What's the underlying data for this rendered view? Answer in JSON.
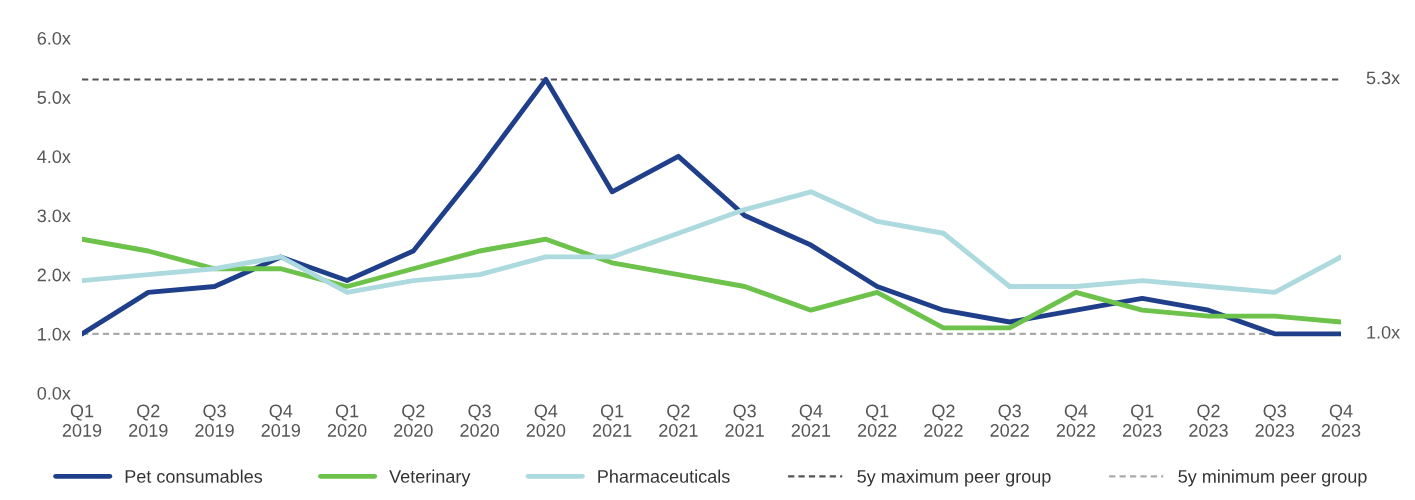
{
  "chart_data": {
    "type": "line",
    "categories": [
      "Q1\n2019",
      "Q2\n2019",
      "Q3\n2019",
      "Q4\n2019",
      "Q1\n2020",
      "Q2\n2020",
      "Q3\n2020",
      "Q4\n2020",
      "Q1\n2021",
      "Q2\n2021",
      "Q3\n2021",
      "Q4\n2021",
      "Q1\n2022",
      "Q2\n2022",
      "Q3\n2022",
      "Q4\n2022",
      "Q1\n2023",
      "Q2\n2023",
      "Q3\n2023",
      "Q4\n2023"
    ],
    "series": [
      {
        "name": "Pet consumables",
        "color": "#1f3f8a",
        "values": [
          1.0,
          1.7,
          1.8,
          2.3,
          1.9,
          2.4,
          3.8,
          5.3,
          3.4,
          4.0,
          3.0,
          2.5,
          1.8,
          1.4,
          1.2,
          1.4,
          1.6,
          1.4,
          1.0,
          1.0
        ]
      },
      {
        "name": "Veterinary",
        "color": "#6cc24a",
        "values": [
          2.6,
          2.4,
          2.1,
          2.1,
          1.8,
          2.1,
          2.4,
          2.6,
          2.2,
          2.0,
          1.8,
          1.4,
          1.7,
          1.1,
          1.1,
          1.7,
          1.4,
          1.3,
          1.3,
          1.2
        ]
      },
      {
        "name": "Pharmaceuticals",
        "color": "#acdadf",
        "values": [
          1.9,
          2.0,
          2.1,
          2.3,
          1.7,
          1.9,
          2.0,
          2.3,
          2.3,
          2.7,
          3.1,
          3.4,
          2.9,
          2.7,
          1.8,
          1.8,
          1.9,
          1.8,
          1.7,
          2.3
        ]
      }
    ],
    "ylim": [
      0,
      6
    ],
    "yticks": [
      {
        "value": 0,
        "label": "0.0x"
      },
      {
        "value": 1,
        "label": "1.0x"
      },
      {
        "value": 2,
        "label": "2.0x"
      },
      {
        "value": 3,
        "label": "3.0x"
      },
      {
        "value": 4,
        "label": "4.0x"
      },
      {
        "value": 5,
        "label": "5.0x"
      },
      {
        "value": 6,
        "label": "6.0x"
      }
    ],
    "ref_lines": [
      {
        "axis": "y",
        "value": 5.3,
        "label": "5y maximum peer group",
        "color": "#555555",
        "line_style": "dashed"
      },
      {
        "axis": "y",
        "value": 1.0,
        "label": "5y minimum peer group",
        "color": "#aaaaaa",
        "line_style": "dashed"
      }
    ],
    "annotations": [
      "5.3x",
      "1.0x"
    ],
    "legend": "bottom",
    "grid": false,
    "line_style": "solid",
    "marker": "none"
  }
}
